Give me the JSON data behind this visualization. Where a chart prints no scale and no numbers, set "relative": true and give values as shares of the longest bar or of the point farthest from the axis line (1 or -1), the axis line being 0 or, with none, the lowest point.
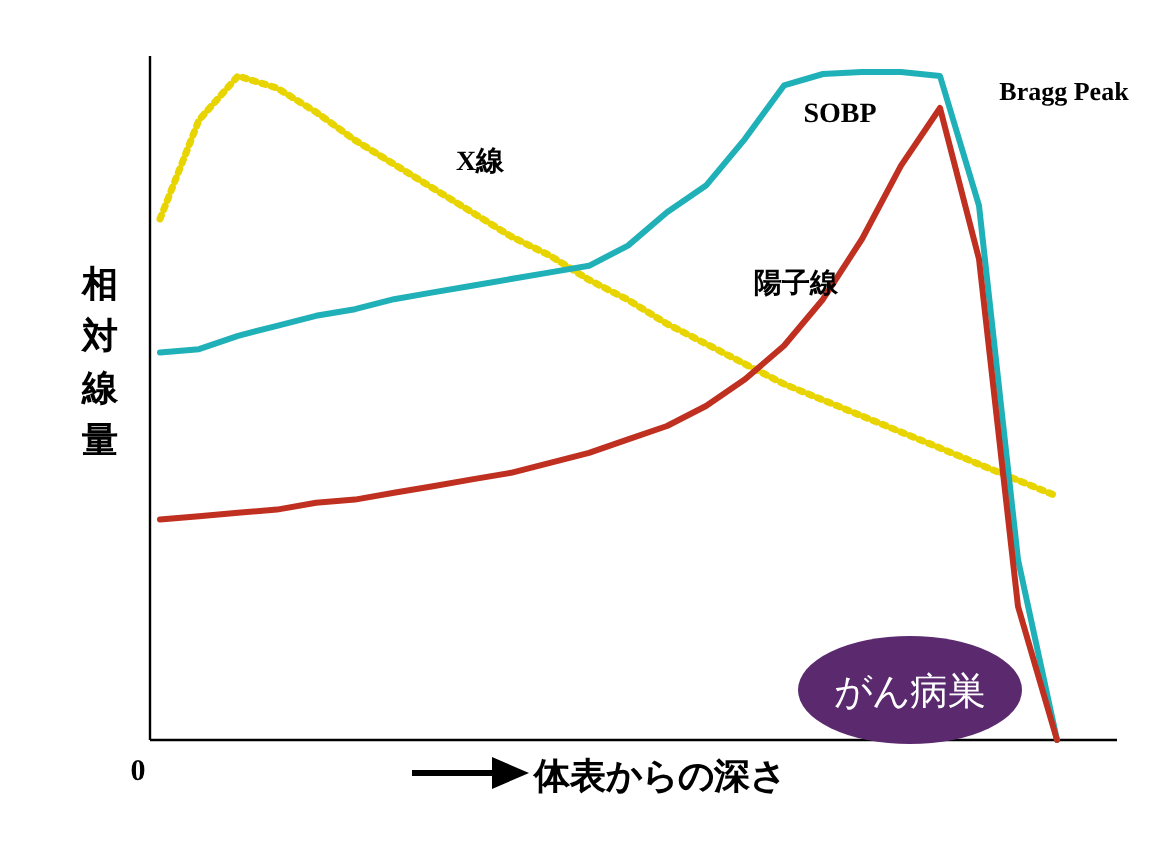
{
  "chart_data": {
    "type": "line",
    "relative": true,
    "xlabel": "体表からの深さ",
    "ylabel": "相対線量",
    "categories": [
      null,
      null,
      null,
      null,
      null,
      null,
      null,
      null,
      null,
      null,
      null,
      null,
      null,
      null,
      null,
      null,
      null,
      null,
      null,
      null,
      null,
      null,
      null,
      null
    ],
    "series": [
      {
        "color": "#e8d400",
        "line_style": "dotted",
        "values": [
          0.78,
          0.928,
          0.994,
          0.976,
          0.94,
          0.898,
          0.862,
          0.826,
          0.79,
          0.754,
          0.725,
          0.689,
          0.659,
          0.623,
          0.593,
          0.563,
          0.533,
          0.509,
          0.485,
          0.461,
          0.437,
          0.413,
          0.389,
          0.365
        ]
      },
      {
        "color": "#20b0b8",
        "line_style": "solid",
        "values": [
          0.58,
          0.585,
          0.605,
          0.62,
          0.635,
          0.645,
          0.66,
          0.67,
          0.68,
          0.69,
          0.7,
          0.71,
          0.74,
          0.79,
          0.83,
          0.9,
          0.98,
          0.997,
          1.0,
          1.0,
          0.994,
          0.8,
          0.27,
          0
        ]
      },
      {
        "color": "#c03020",
        "line_style": "solid",
        "values": [
          0.33,
          0.335,
          0.34,
          0.345,
          0.355,
          0.36,
          0.37,
          0.38,
          0.39,
          0.4,
          0.415,
          0.43,
          0.45,
          0.47,
          0.5,
          0.54,
          0.59,
          0.66,
          0.75,
          0.86,
          0.946,
          0.72,
          0.2,
          0
        ]
      }
    ],
    "annotations": [
      "X線",
      "SOBP",
      "Bragg Peak",
      "陽子線",
      "がん病巣",
      "0"
    ]
  }
}
